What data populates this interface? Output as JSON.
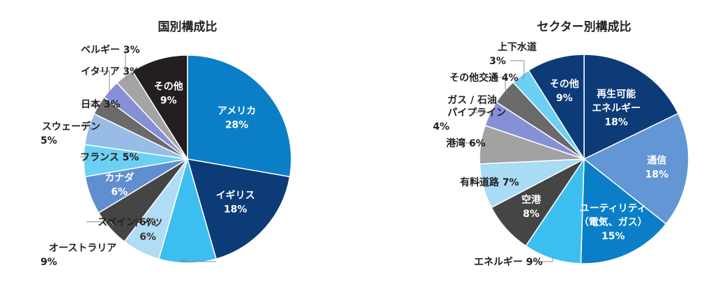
{
  "chart_data": [
    {
      "type": "pie",
      "title": "国別構成比",
      "slices": [
        {
          "name": "アメリカ",
          "value": 28,
          "value_label": "28%",
          "color": "#0a7fc7",
          "label_inside": true,
          "label_color": "#ffffff"
        },
        {
          "name": "イギリス",
          "value": 18,
          "value_label": "18%",
          "color": "#0d3b78",
          "label_inside": true,
          "label_color": "#ffffff"
        },
        {
          "name": "オーストラリア",
          "value": 9,
          "value_label": "9%",
          "color": "#3cbff0",
          "label_inside": false
        },
        {
          "name": "ドイツ",
          "value": 6,
          "value_label": "6%",
          "color": "#b0dcf5",
          "label_inside": true,
          "label_color": "#333333"
        },
        {
          "name": "スペイン",
          "value": 6,
          "value_label": "6%",
          "color": "#454545",
          "label_inside": false
        },
        {
          "name": "カナダ",
          "value": 6,
          "value_label": "6%",
          "color": "#5f8fd0",
          "label_inside": true,
          "label_color": "#ffffff"
        },
        {
          "name": "フランス",
          "value": 5,
          "value_label": "5%",
          "color": "#6cd0f3",
          "label_inside": false
        },
        {
          "name": "スウェーデン",
          "value": 5,
          "value_label": "5%",
          "color": "#97bde6",
          "label_inside": false
        },
        {
          "name": "日本",
          "value": 3,
          "value_label": "3%",
          "color": "#6a6a6a",
          "label_inside": false
        },
        {
          "name": "イタリア",
          "value": 3,
          "value_label": "3%",
          "color": "#8590d6",
          "label_inside": false
        },
        {
          "name": "ベルギー",
          "value": 3,
          "value_label": "3%",
          "color": "#a4a4a4",
          "label_inside": false
        },
        {
          "name": "その他",
          "value": 9,
          "value_label": "9%",
          "color": "#231f20",
          "label_inside": true,
          "label_color": "#ffffff"
        }
      ]
    },
    {
      "type": "pie",
      "title": "セクター別構成比",
      "slices": [
        {
          "name": "再生可能\nエネルギー",
          "value": 18,
          "value_label": "18%",
          "color": "#0d3b78",
          "label_inside": true,
          "label_color": "#ffffff"
        },
        {
          "name": "通信",
          "value": 18,
          "value_label": "18%",
          "color": "#6296d4",
          "label_inside": true,
          "label_color": "#ffffff"
        },
        {
          "name": "ユーティリティ\n（電気、ガス）",
          "value": 15,
          "value_label": "15%",
          "color": "#0a7fc7",
          "label_inside": true,
          "label_color": "#ffffff"
        },
        {
          "name": "エネルギー",
          "value": 9,
          "value_label": "9%",
          "color": "#3cbff0",
          "label_inside": false
        },
        {
          "name": "空港",
          "value": 8,
          "value_label": "8%",
          "color": "#454545",
          "label_inside": true,
          "label_color": "#ffffff"
        },
        {
          "name": "有料道路",
          "value": 7,
          "value_label": "7%",
          "color": "#a9dbf5",
          "label_inside": false
        },
        {
          "name": "港湾",
          "value": 6,
          "value_label": "6%",
          "color": "#a2a2a2",
          "label_inside": false
        },
        {
          "name": "ガス / 石油\nパイプライン",
          "value": 4,
          "value_label": "4%",
          "color": "#8590d6",
          "label_inside": false
        },
        {
          "name": "その他交通",
          "value": 4,
          "value_label": "4%",
          "color": "#6a6a6a",
          "label_inside": false
        },
        {
          "name": "上下水道",
          "value": 3,
          "value_label": "3%",
          "color": "#6cd0f3",
          "label_inside": false
        },
        {
          "name": "その他",
          "value": 9,
          "value_label": "9%",
          "color": "#0d3b78",
          "label_inside": true,
          "label_color": "#ffffff"
        }
      ]
    }
  ]
}
